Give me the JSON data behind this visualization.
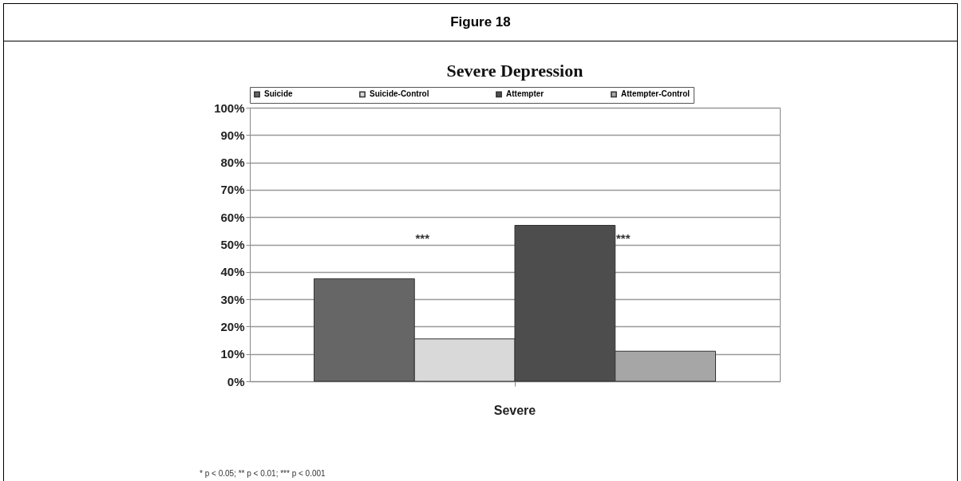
{
  "chart_data": {
    "type": "bar",
    "title": "Figure 18",
    "subtitle": "Severe Depression",
    "categories": [
      "Severe"
    ],
    "series": [
      {
        "name": "Suicide",
        "color": "#666666",
        "values": [
          37.5
        ]
      },
      {
        "name": "Suicide-Control",
        "color": "#d9d9d9",
        "values": [
          15.5
        ]
      },
      {
        "name": "Attempter",
        "color": "#4d4d4d",
        "values": [
          57
        ]
      },
      {
        "name": "Attempter-Control",
        "color": "#a6a6a6",
        "values": [
          11
        ]
      }
    ],
    "ylim": [
      0,
      100
    ],
    "yticks": [
      {
        "value": 0,
        "label": "0%"
      },
      {
        "value": 10,
        "label": "10%"
      },
      {
        "value": 20,
        "label": "20%"
      },
      {
        "value": 30,
        "label": "30%"
      },
      {
        "value": 40,
        "label": "40%"
      },
      {
        "value": 50,
        "label": "50%"
      },
      {
        "value": 60,
        "label": "60%"
      },
      {
        "value": 70,
        "label": "70%"
      },
      {
        "value": 80,
        "label": "80%"
      },
      {
        "value": 90,
        "label": "90%"
      },
      {
        "value": 100,
        "label": "100%"
      }
    ],
    "grid": "y",
    "legend": "top",
    "annotations": [
      "***",
      "***",
      "* p < 0.05; ** p < 0.01; *** p < 0.001"
    ]
  }
}
